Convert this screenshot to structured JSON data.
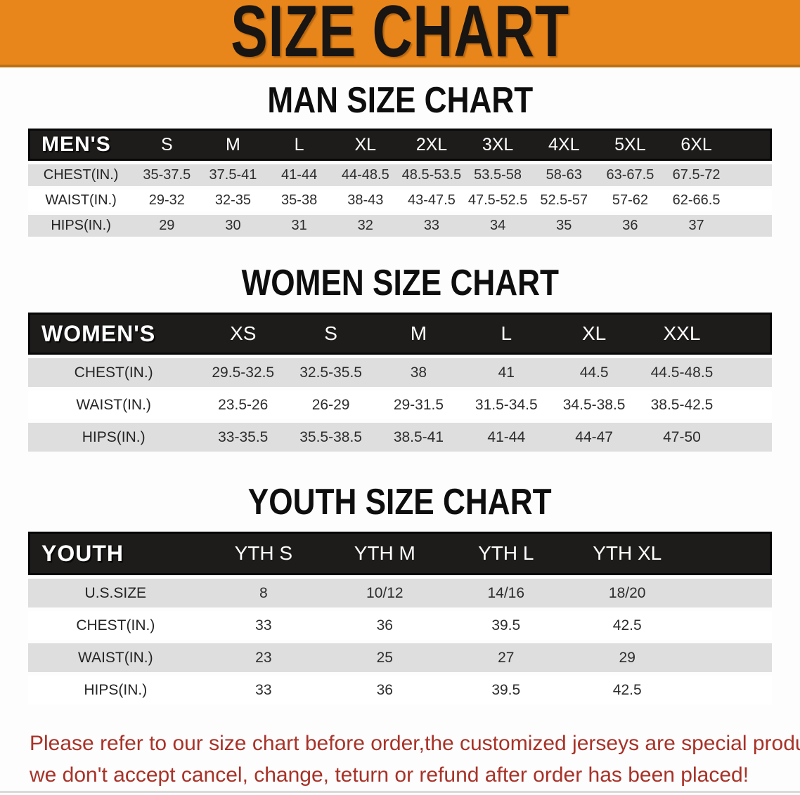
{
  "banner": {
    "title": "SIZE CHART"
  },
  "sections": [
    {
      "heading": "MAN SIZE CHART",
      "table": {
        "header_label": "MEN'S",
        "columns": [
          "S",
          "M",
          "L",
          "XL",
          "2XL",
          "3XL",
          "4XL",
          "5XL",
          "6XL"
        ],
        "rows": [
          {
            "label": "CHEST(IN.)",
            "values": [
              "35-37.5",
              "37.5-41",
              "41-44",
              "44-48.5",
              "48.5-53.5",
              "53.5-58",
              "58-63",
              "63-67.5",
              "67.5-72"
            ]
          },
          {
            "label": "WAIST(IN.)",
            "values": [
              "29-32",
              "32-35",
              "35-38",
              "38-43",
              "43-47.5",
              "47.5-52.5",
              "52.5-57",
              "57-62",
              "62-66.5"
            ]
          },
          {
            "label": "HIPS(IN.)",
            "values": [
              "29",
              "30",
              "31",
              "32",
              "33",
              "34",
              "35",
              "36",
              "37"
            ]
          }
        ]
      }
    },
    {
      "heading": "WOMEN SIZE CHART",
      "table": {
        "header_label": "WOMEN'S",
        "columns": [
          "XS",
          "S",
          "M",
          "L",
          "XL",
          "XXL"
        ],
        "rows": [
          {
            "label": "CHEST(IN.)",
            "values": [
              "29.5-32.5",
              "32.5-35.5",
              "38",
              "41",
              "44.5",
              "44.5-48.5"
            ]
          },
          {
            "label": "WAIST(IN.)",
            "values": [
              "23.5-26",
              "26-29",
              "29-31.5",
              "31.5-34.5",
              "34.5-38.5",
              "38.5-42.5"
            ]
          },
          {
            "label": "HIPS(IN.)",
            "values": [
              "33-35.5",
              "35.5-38.5",
              "38.5-41",
              "41-44",
              "44-47",
              "47-50"
            ]
          }
        ]
      }
    },
    {
      "heading": "YOUTH SIZE CHART",
      "table": {
        "header_label": "YOUTH",
        "columns": [
          "YTH S",
          "YTH M",
          "YTH L",
          "YTH XL"
        ],
        "rows": [
          {
            "label": "U.S.SIZE",
            "values": [
              "8",
              "10/12",
              "14/16",
              "18/20"
            ]
          },
          {
            "label": "CHEST(IN.)",
            "values": [
              "33",
              "36",
              "39.5",
              "42.5"
            ]
          },
          {
            "label": "WAIST(IN.)",
            "values": [
              "23",
              "25",
              "27",
              "29"
            ]
          },
          {
            "label": "HIPS(IN.)",
            "values": [
              "33",
              "36",
              "39.5",
              "42.5"
            ]
          }
        ]
      }
    }
  ],
  "footer_note": {
    "line1": "Please refer to our size chart before order,the customized jerseys are special products,",
    "line2": "we don't accept cancel, change, teturn or refund after order has been placed!"
  },
  "colors": {
    "banner_bg": "#e8861b",
    "banner_edge": "#bc7013",
    "header_bar": "#1e1c1b",
    "stripe": "#dedede",
    "text_dark": "#2d2d2d",
    "note_red": "#a83228"
  }
}
